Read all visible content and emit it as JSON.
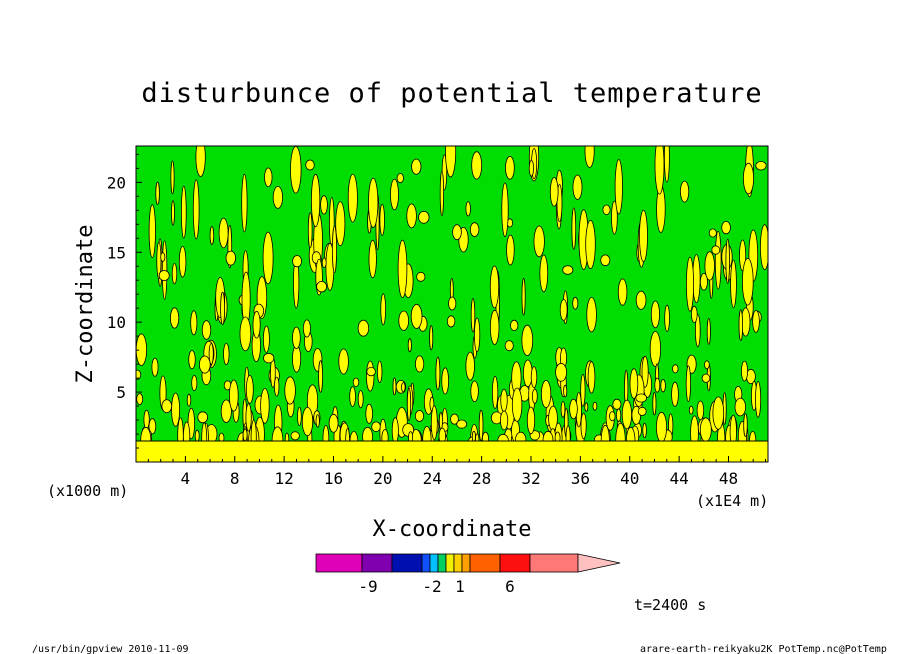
{
  "chart_data": {
    "type": "heatmap",
    "title": "disturbunce of potential temperature",
    "xlabel": "X-coordinate",
    "ylabel": "Z-coordinate",
    "x_unit_left": "(x1000 m)",
    "x_unit_right": "(x1E4 m)",
    "x_ticks": [
      "4",
      "8",
      "12",
      "16",
      "20",
      "24",
      "28",
      "32",
      "36",
      "40",
      "44",
      "48"
    ],
    "y_ticks": [
      "5",
      "10",
      "15",
      "20"
    ],
    "xlim": [
      0,
      51.2
    ],
    "ylim": [
      0,
      22.6
    ],
    "colorbar": {
      "colors": [
        "#e000b8",
        "#8000b0",
        "#0010b0",
        "#1050ff",
        "#00c0ff",
        "#00d060",
        "#f0f000",
        "#ffd000",
        "#ffa000",
        "#ff6000",
        "#ff1010",
        "#ff7878",
        "#ffc0c0"
      ],
      "labels": [
        "-9",
        "-2",
        "1",
        "6"
      ]
    },
    "time_label": "t=2400 s",
    "field_colors": {
      "background": "#00dd00",
      "positive": "#ffff00",
      "contour": "#000000"
    }
  },
  "footer": {
    "left": "/usr/bin/gpview   2010-11-09",
    "right": "arare-earth-reikyaku2K_PotTemp.nc@PotTemp"
  }
}
